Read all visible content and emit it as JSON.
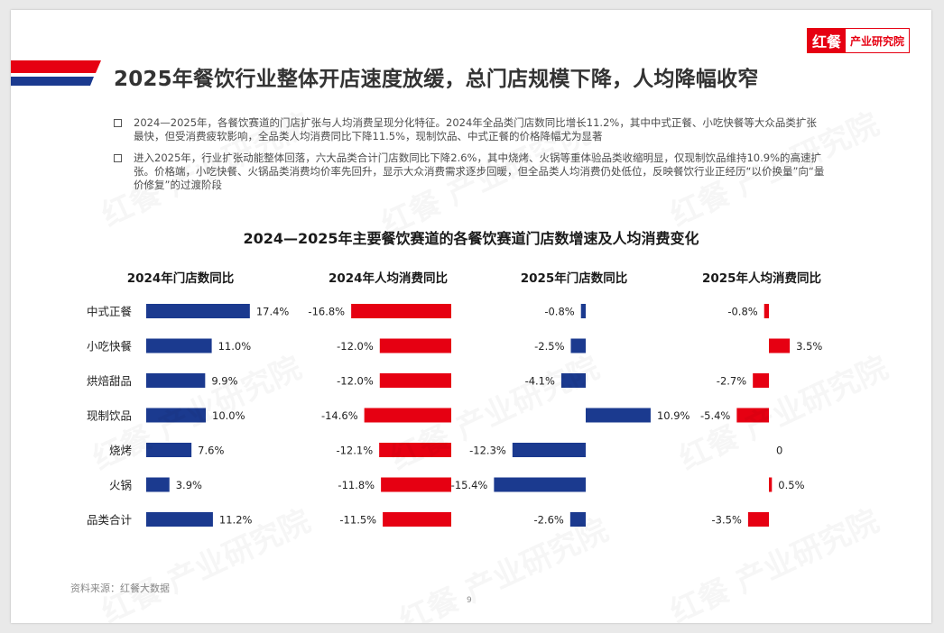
{
  "header": {
    "title": "2025年餐饮行业整体开店速度放缓，总门店规模下降，人均降幅收窄",
    "logo_mark": "红餐",
    "logo_text": "产业研究院"
  },
  "bullets": [
    "2024—2025年，各餐饮赛道的门店扩张与人均消费呈现分化特征。2024年全品类门店数同比增长11.2%，其中中式正餐、小吃快餐等大众品类扩张最快，但受消费疲软影响，全品类人均消费同比下降11.5%，现制饮品、中式正餐的价格降幅尤为显著",
    "进入2025年，行业扩张动能整体回落，六大品类合计门店数同比下降2.6%，其中烧烤、火锅等重体验品类收缩明显，仅现制饮品维持10.9%的高速扩张。价格端，小吃快餐、火锅品类消费均价率先回升，显示大众消费需求逐步回暖，但全品类人均消费仍处低位，反映餐饮行业正经历“以价换量”向“量价修复”的过渡阶段"
  ],
  "source": "资料来源：红餐大数据",
  "page_number": "9",
  "watermark": "红餐 产业研究院",
  "colors": {
    "red": "#e60012",
    "blue": "#1b3a8f",
    "title_bar_red": "#e60012",
    "title_bar_blue": "#1b3a8f"
  },
  "chart_data": {
    "type": "bar",
    "orientation": "horizontal",
    "title": "2024—2025年主要餐饮赛道的各餐饮赛道门店数增速及人均消费变化",
    "categories": [
      "中式正餐",
      "小吃快餐",
      "烘焙甜品",
      "现制饮品",
      "烧烤",
      "火锅",
      "品类合计"
    ],
    "series": [
      {
        "name": "2024年门店数同比",
        "values": [
          17.4,
          11.0,
          9.9,
          10.0,
          7.6,
          3.9,
          11.2
        ],
        "labels": [
          "17.4%",
          "11.0%",
          "9.9%",
          "10.0%",
          "7.6%",
          "3.9%",
          "11.2%"
        ]
      },
      {
        "name": "2024年人均消费同比",
        "values": [
          -16.8,
          -12.0,
          -12.0,
          -14.6,
          -12.1,
          -11.8,
          -11.5
        ],
        "labels": [
          "-16.8%",
          "-12.0%",
          "-12.0%",
          "-14.6%",
          "-12.1%",
          "-11.8%",
          "-11.5%"
        ]
      },
      {
        "name": "2025年门店数同比",
        "values": [
          -0.8,
          -2.5,
          -4.1,
          10.9,
          -12.3,
          -15.4,
          -2.6
        ],
        "labels": [
          "-0.8%",
          "-2.5%",
          "-4.1%",
          "10.9%",
          "-12.3%",
          "-15.4%",
          "-2.6%"
        ]
      },
      {
        "name": "2025年人均消费同比",
        "values": [
          -0.8,
          3.5,
          -2.7,
          -5.4,
          0,
          0.5,
          -3.5
        ],
        "labels": [
          "-0.8%",
          "3.5%",
          "-2.7%",
          "-5.4%",
          "0",
          "0.5%",
          "-3.5%"
        ]
      }
    ],
    "value_unit": "%",
    "grid": false,
    "legend": "none"
  }
}
